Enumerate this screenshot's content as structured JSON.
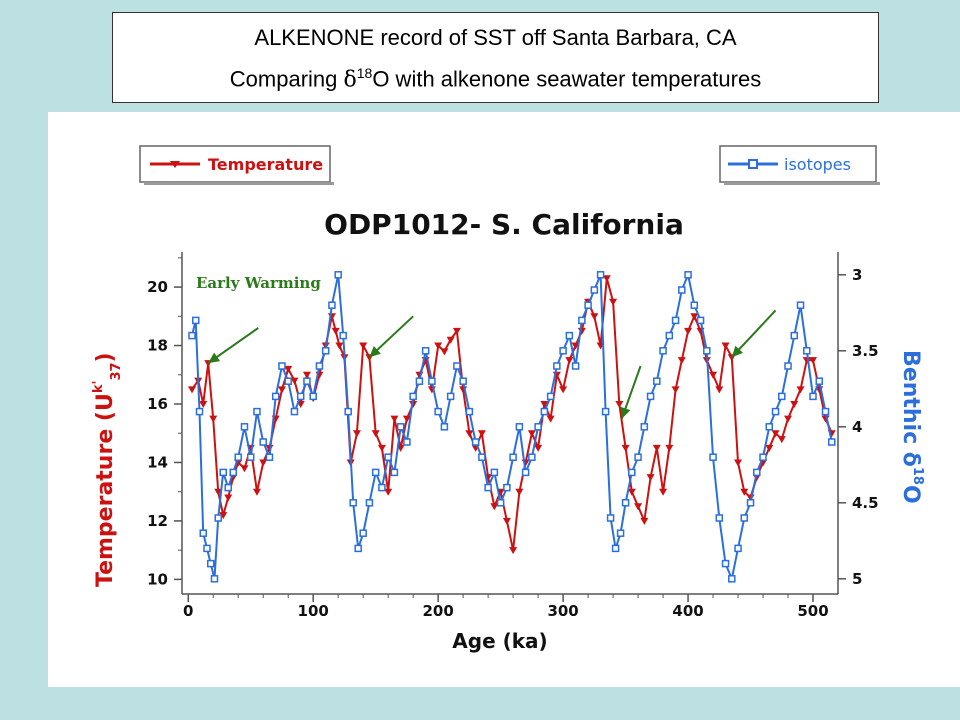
{
  "header": {
    "line1": "ALKENONE record of SST off Santa Barbara, CA",
    "line2_prefix": "Comparing ",
    "line2_delta": "δ",
    "line2_sup": "18",
    "line2_suffix": "O with alkenone seawater temperatures"
  },
  "colors": {
    "temperature": "#cc1111",
    "isotopes": "#2b6fdc",
    "arrow": "#2a7a1a",
    "annotation": "#2a7a1a"
  },
  "chart_data": {
    "type": "line",
    "title": "ODP1012- S. California",
    "xlabel": "Age (ka)",
    "ylabel": "Temperature (U",
    "ylabel_sup": "k'",
    "ylabel_sub": "37",
    "ylabel_end": ")",
    "y2label": "Benthic δ",
    "y2label_sup": "18",
    "y2label_end": "O",
    "xlim": [
      -5,
      520
    ],
    "ylim": [
      9.5,
      21.2
    ],
    "y2lim": [
      5.1,
      2.85
    ],
    "xticks": [
      0,
      100,
      200,
      300,
      400,
      500
    ],
    "yticks": [
      10,
      12,
      14,
      16,
      18,
      20
    ],
    "y2ticks": [
      3,
      3.5,
      4,
      4.5,
      5
    ],
    "y2ticklabels": [
      "3",
      "3.5",
      "4",
      "4.5",
      "5"
    ],
    "legend": [
      "Temperature",
      "isotopes"
    ],
    "annotation": "Early Warming",
    "series": [
      {
        "name": "Temperature",
        "axis": "left",
        "x": [
          3,
          8,
          12,
          16,
          20,
          24,
          28,
          32,
          36,
          40,
          45,
          50,
          55,
          60,
          65,
          70,
          75,
          80,
          85,
          90,
          95,
          100,
          105,
          110,
          115,
          118,
          121,
          125,
          130,
          135,
          140,
          145,
          150,
          155,
          160,
          165,
          170,
          175,
          180,
          185,
          190,
          195,
          200,
          205,
          210,
          215,
          220,
          225,
          230,
          235,
          240,
          245,
          250,
          255,
          260,
          265,
          270,
          275,
          280,
          285,
          290,
          295,
          300,
          305,
          310,
          315,
          320,
          325,
          330,
          335,
          340,
          345,
          350,
          355,
          360,
          365,
          370,
          375,
          380,
          385,
          390,
          395,
          400,
          405,
          410,
          415,
          420,
          425,
          430,
          435,
          440,
          445,
          450,
          455,
          460,
          465,
          470,
          475,
          480,
          485,
          490,
          495,
          500,
          505,
          510,
          515
        ],
        "y": [
          16.5,
          16.8,
          16.0,
          17.4,
          15.5,
          13.0,
          12.2,
          12.8,
          13.5,
          14.0,
          13.8,
          14.5,
          13.0,
          14.0,
          14.5,
          15.5,
          16.5,
          17.2,
          16.8,
          16.0,
          17.0,
          16.2,
          17.0,
          18.0,
          19.0,
          18.5,
          18.0,
          17.6,
          14.0,
          15.0,
          18.0,
          17.6,
          15.0,
          14.5,
          13.0,
          15.5,
          14.5,
          15.5,
          16.0,
          17.0,
          17.5,
          16.5,
          18.0,
          17.8,
          18.2,
          18.5,
          16.5,
          15.0,
          14.5,
          15.0,
          13.5,
          12.5,
          13.0,
          12.0,
          11.0,
          13.0,
          14.0,
          15.0,
          14.5,
          16.0,
          15.5,
          17.0,
          16.5,
          17.5,
          18.0,
          18.5,
          19.5,
          19.0,
          18.0,
          20.3,
          19.5,
          16.0,
          14.5,
          13.0,
          12.5,
          12.0,
          13.5,
          14.5,
          13.0,
          14.5,
          16.5,
          17.5,
          18.5,
          19.0,
          18.5,
          17.5,
          17.0,
          16.5,
          18.0,
          17.6,
          14.0,
          13.0,
          12.8,
          13.5,
          14.0,
          14.5,
          15.0,
          14.8,
          15.5,
          16.0,
          16.5,
          17.5,
          17.5,
          16.5,
          15.5,
          15.0
        ]
      },
      {
        "name": "isotopes",
        "axis": "right",
        "x": [
          3,
          6,
          9,
          12,
          15,
          18,
          21,
          24,
          28,
          32,
          36,
          40,
          45,
          50,
          55,
          60,
          65,
          70,
          75,
          80,
          85,
          90,
          95,
          100,
          105,
          110,
          115,
          120,
          124,
          128,
          132,
          136,
          140,
          145,
          150,
          155,
          160,
          165,
          170,
          175,
          180,
          185,
          190,
          195,
          200,
          205,
          210,
          215,
          220,
          225,
          230,
          235,
          240,
          245,
          250,
          255,
          260,
          265,
          270,
          275,
          280,
          285,
          290,
          295,
          300,
          305,
          310,
          315,
          320,
          325,
          330,
          334,
          338,
          342,
          346,
          350,
          355,
          360,
          365,
          370,
          375,
          380,
          385,
          390,
          395,
          400,
          405,
          410,
          415,
          420,
          425,
          430,
          435,
          440,
          445,
          450,
          455,
          460,
          465,
          470,
          475,
          480,
          485,
          490,
          495,
          500,
          505,
          510,
          515
        ],
        "y": [
          3.4,
          3.3,
          3.9,
          4.7,
          4.8,
          4.9,
          5.0,
          4.6,
          4.3,
          4.4,
          4.3,
          4.2,
          4.0,
          4.2,
          3.9,
          4.1,
          4.2,
          3.8,
          3.6,
          3.7,
          3.9,
          3.8,
          3.7,
          3.8,
          3.6,
          3.5,
          3.2,
          3.0,
          3.4,
          3.9,
          4.5,
          4.8,
          4.7,
          4.5,
          4.3,
          4.4,
          4.2,
          4.3,
          4.0,
          4.1,
          3.8,
          3.7,
          3.5,
          3.7,
          3.9,
          4.0,
          3.8,
          3.6,
          3.7,
          3.9,
          4.1,
          4.2,
          4.4,
          4.3,
          4.5,
          4.4,
          4.2,
          4.0,
          4.3,
          4.2,
          4.0,
          3.9,
          3.8,
          3.6,
          3.5,
          3.4,
          3.6,
          3.3,
          3.2,
          3.1,
          3.0,
          3.9,
          4.6,
          4.8,
          4.7,
          4.5,
          4.3,
          4.2,
          4.0,
          3.8,
          3.7,
          3.5,
          3.4,
          3.3,
          3.1,
          3.0,
          3.2,
          3.3,
          3.5,
          4.2,
          4.6,
          4.9,
          5.0,
          4.8,
          4.6,
          4.5,
          4.3,
          4.2,
          4.0,
          3.9,
          3.8,
          3.6,
          3.4,
          3.2,
          3.5,
          3.8,
          3.7,
          3.9,
          4.1
        ]
      }
    ]
  }
}
